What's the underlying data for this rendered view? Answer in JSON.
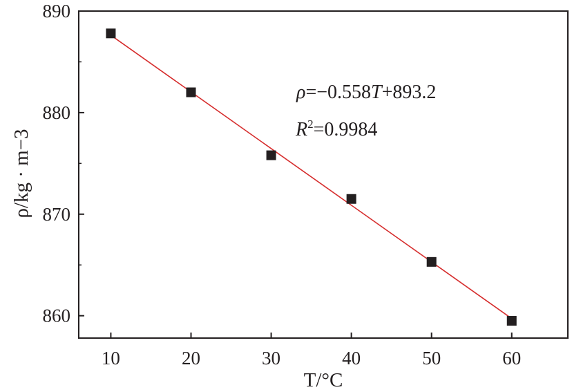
{
  "chart_data": {
    "type": "scatter",
    "title": "",
    "xlabel": "T/°C",
    "ylabel": "ρ/kg · m−3",
    "xlim": [
      6,
      67
    ],
    "ylim": [
      857.8,
      890
    ],
    "x_ticks": [
      10,
      20,
      30,
      40,
      50,
      60
    ],
    "x_tick_labels": [
      "10",
      "20",
      "30",
      "40",
      "50",
      "60"
    ],
    "y_ticks": [
      860,
      870,
      880,
      890
    ],
    "y_tick_labels": [
      "860",
      "870",
      "880",
      "890"
    ],
    "grid": false,
    "series": [
      {
        "marker": "square",
        "color": "#231f20",
        "x": [
          10,
          20,
          30,
          40,
          50,
          60
        ],
        "y": [
          887.8,
          882.0,
          875.8,
          871.5,
          865.3,
          859.5
        ]
      }
    ],
    "fit_line": {
      "color": "#d62d2d",
      "slope": -0.558,
      "intercept": 893.2,
      "x_range": [
        10,
        60
      ]
    },
    "annotations": {
      "equation": {
        "rho": "ρ",
        "mid": "=−0.558",
        "T": "T",
        "rest": "+893.2"
      },
      "r_squared": {
        "R": "R",
        "sup": "2",
        "rest": "=0.9984"
      }
    },
    "colors": {
      "axis": "#231f20",
      "marker": "#231f20",
      "fit": "#d62d2d"
    }
  }
}
